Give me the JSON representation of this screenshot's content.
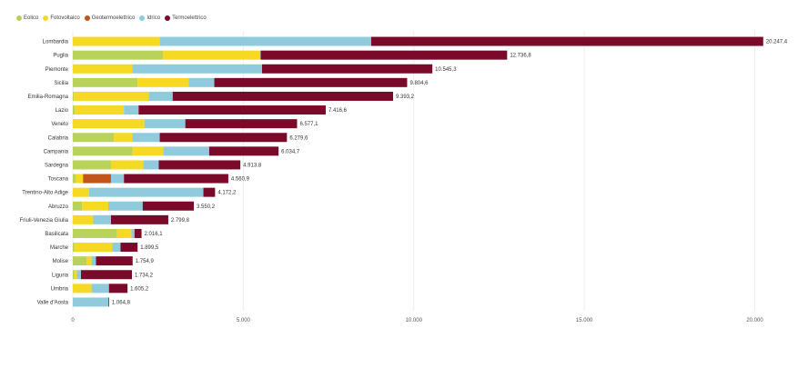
{
  "legend": [
    {
      "name": "Eolico",
      "color": "#b9d25a"
    },
    {
      "name": "Fotovoltaico",
      "color": "#f5d923"
    },
    {
      "name": "Geotermoelettrico",
      "color": "#c0561b"
    },
    {
      "name": "Idrico",
      "color": "#8fcbdc"
    },
    {
      "name": "Termoelettrico",
      "color": "#7b0a2a"
    }
  ],
  "chart_data": {
    "type": "bar",
    "orientation": "horizontal",
    "stacked": true,
    "legend_position": "top-left",
    "grid": true,
    "xlim": [
      0,
      21000
    ],
    "x_ticks": [
      {
        "value": 0,
        "label": "0"
      },
      {
        "value": 5000,
        "label": "5.000"
      },
      {
        "value": 10000,
        "label": "10.000"
      },
      {
        "value": 15000,
        "label": "15.000"
      },
      {
        "value": 20000,
        "label": "20.000"
      }
    ],
    "categories": [
      "Lombardia",
      "Puglia",
      "Piemonte",
      "Sicilia",
      "Emilia-Romagna",
      "Lazio",
      "Veneto",
      "Calabria",
      "Campania",
      "Sardegna",
      "Toscana",
      "Trentino-Alto Adige",
      "Abruzzo",
      "Friuli-Venezia Giulia",
      "Basilicata",
      "Marche",
      "Molise",
      "Liguria",
      "Umbria",
      "Valle d'Aosta"
    ],
    "totals_labels": [
      "20.247,4",
      "12.736,8",
      "10.545,3",
      "9.804,6",
      "9.393,2",
      "7.416,6",
      "6.577,1",
      "6.279,6",
      "6.034,7",
      "4.913,8",
      "4.560,9",
      "4.172,2",
      "3.550,2",
      "2.799,8",
      "2.016,1",
      "1.899,5",
      "1.754,9",
      "1.734,2",
      "1.605,2",
      "1.064,8"
    ],
    "series": [
      {
        "name": "Eolico",
        "values": [
          0,
          2650,
          0,
          1900,
          30,
          60,
          0,
          1200,
          1750,
          1120,
          100,
          0,
          270,
          0,
          1300,
          50,
          400,
          40,
          0,
          0
        ]
      },
      {
        "name": "Fotovoltaico",
        "values": [
          2550,
          2850,
          1750,
          1500,
          2200,
          1440,
          2100,
          550,
          900,
          950,
          200,
          480,
          770,
          600,
          420,
          1110,
          150,
          80,
          550,
          0
        ]
      },
      {
        "name": "Geotermoelettrico",
        "values": [
          0,
          0,
          0,
          0,
          0,
          0,
          0,
          0,
          0,
          0,
          820,
          0,
          0,
          0,
          0,
          0,
          0,
          0,
          0,
          0
        ]
      },
      {
        "name": "Idrico",
        "values": [
          6200,
          10,
          3800,
          750,
          700,
          430,
          1200,
          800,
          1350,
          450,
          380,
          3350,
          1010,
          520,
          90,
          240,
          130,
          120,
          510,
          1045
        ]
      },
      {
        "name": "Termoelettrico",
        "values": [
          11497,
          7227,
          4995,
          5655,
          6463,
          5487,
          3277,
          3730,
          2035,
          2394,
          3061,
          342,
          1500,
          1680,
          206,
          500,
          1075,
          1494,
          545,
          20
        ]
      }
    ]
  }
}
